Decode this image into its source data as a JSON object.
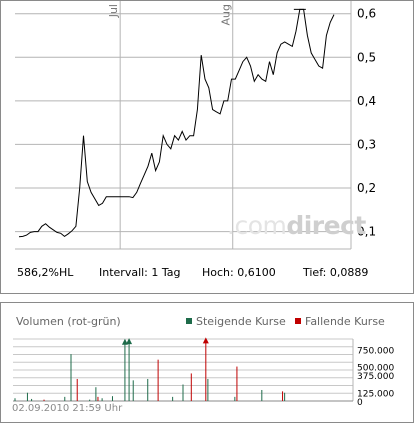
{
  "watermark": {
    "prefix": ".com",
    "bold": "direct"
  },
  "stats": {
    "performance": "586,2%HL",
    "interval": "Intervall: 1 Tag",
    "high": "Hoch: 0,6100",
    "low": "Tief: 0,0889"
  },
  "volume_panel": {
    "title": "Volumen (rot-grün)",
    "legend_up": "Steigende Kurse",
    "legend_down": "Fallende Kurse"
  },
  "colors": {
    "up": "#1e6b4a",
    "down": "#c00000",
    "line": "#000000",
    "grid": "#b4b4b4"
  },
  "footer": {
    "timestamp": "02.09.2010 21:59 Uhr"
  },
  "chart_data": [
    {
      "type": "line",
      "title": "",
      "x_month_labels": [
        "Jul",
        "Aug"
      ],
      "yticks": [
        "0,1",
        "0,2",
        "0,3",
        "0,4",
        "0,5",
        "0,6"
      ],
      "ylim": [
        0.06,
        0.62
      ],
      "grid": true,
      "series": [
        {
          "values": [
            0.088,
            0.089,
            0.092,
            0.098,
            0.1,
            0.1,
            0.112,
            0.118,
            0.11,
            0.104,
            0.098,
            0.096,
            0.089,
            0.095,
            0.102,
            0.112,
            0.2,
            0.32,
            0.215,
            0.19,
            0.175,
            0.16,
            0.165,
            0.18,
            0.18,
            0.18,
            0.18,
            0.18,
            0.18,
            0.18,
            0.178,
            0.19,
            0.21,
            0.23,
            0.25,
            0.28,
            0.24,
            0.26,
            0.32,
            0.3,
            0.29,
            0.32,
            0.31,
            0.33,
            0.31,
            0.32,
            0.32,
            0.38,
            0.505,
            0.45,
            0.43,
            0.38,
            0.375,
            0.37,
            0.4,
            0.4,
            0.45,
            0.45,
            0.47,
            0.49,
            0.5,
            0.48,
            0.445,
            0.46,
            0.45,
            0.445,
            0.49,
            0.46,
            0.51,
            0.53,
            0.535,
            0.53,
            0.525,
            0.56,
            0.61,
            0.61,
            0.55,
            0.51,
            0.495,
            0.48,
            0.475,
            0.55,
            0.58,
            0.598
          ]
        }
      ]
    },
    {
      "type": "bar",
      "title": "Volumen (rot-grün)",
      "yticks": [
        "750.000",
        "500.000",
        "375.000",
        "125.000",
        "0"
      ],
      "ylim": [
        0,
        900000
      ],
      "series": [
        {
          "name": "Steigende Kurse",
          "values": [
            40000,
            0,
            0,
            0,
            0,
            0,
            120000,
            0,
            30000,
            0,
            0,
            0,
            0,
            0,
            0,
            0,
            0,
            0,
            0,
            0,
            0,
            0,
            0,
            0,
            60000,
            0,
            0,
            680000,
            0,
            0,
            0,
            0,
            0,
            0,
            0,
            0,
            20000,
            0,
            0,
            200000,
            0,
            0,
            40000,
            0,
            0,
            0,
            0,
            70000,
            0,
            0,
            0,
            0,
            0,
            860000,
            0,
            870000,
            0,
            300000,
            0,
            0,
            0,
            0,
            0,
            0,
            320000,
            0,
            0,
            0,
            0,
            0,
            0,
            0,
            0,
            0,
            0,
            0,
            60000,
            0,
            0,
            0,
            0,
            240000,
            0,
            0,
            0,
            0,
            0,
            0,
            0,
            0,
            0,
            0,
            0,
            320000,
            0,
            0,
            0,
            0,
            0,
            0,
            0,
            0,
            0,
            0,
            0,
            0,
            60000,
            0,
            0,
            0,
            0,
            0,
            0,
            0,
            0,
            0,
            0,
            0,
            0,
            160000,
            0,
            0,
            0,
            0,
            0,
            0,
            0,
            0,
            0,
            0,
            120000,
            0,
            0,
            0,
            0,
            0,
            0,
            0,
            0,
            0,
            0,
            0,
            0,
            0,
            0,
            0,
            0,
            0,
            0,
            0,
            0,
            0,
            0,
            0,
            0,
            0,
            0,
            0,
            0,
            0,
            0,
            0
          ]
        },
        {
          "name": "Fallende Kurse",
          "values": [
            0,
            0,
            0,
            0,
            0,
            0,
            0,
            0,
            0,
            0,
            0,
            0,
            0,
            0,
            20000,
            0,
            0,
            0,
            0,
            0,
            0,
            0,
            0,
            0,
            0,
            0,
            0,
            0,
            0,
            0,
            320000,
            0,
            0,
            0,
            0,
            0,
            0,
            0,
            0,
            0,
            60000,
            0,
            0,
            0,
            0,
            0,
            0,
            0,
            0,
            0,
            0,
            0,
            0,
            0,
            0,
            0,
            0,
            0,
            0,
            0,
            0,
            0,
            0,
            0,
            0,
            0,
            0,
            0,
            0,
            600000,
            0,
            0,
            0,
            0,
            0,
            0,
            0,
            0,
            0,
            0,
            0,
            0,
            0,
            0,
            0,
            400000,
            0,
            0,
            0,
            0,
            0,
            0,
            880000,
            0,
            0,
            0,
            0,
            0,
            0,
            0,
            0,
            0,
            0,
            0,
            0,
            0,
            0,
            500000,
            0,
            0,
            0,
            0,
            0,
            0,
            0,
            0,
            0,
            0,
            0,
            0,
            0,
            0,
            0,
            0,
            0,
            0,
            0,
            0,
            0,
            140000,
            0,
            0,
            0,
            0,
            0,
            0,
            0,
            0,
            0,
            0,
            0,
            0,
            0,
            0,
            0,
            0,
            0,
            0,
            0,
            0,
            0,
            0,
            0,
            0,
            0,
            0,
            0,
            0,
            0,
            0,
            0,
            0
          ]
        }
      ]
    }
  ]
}
